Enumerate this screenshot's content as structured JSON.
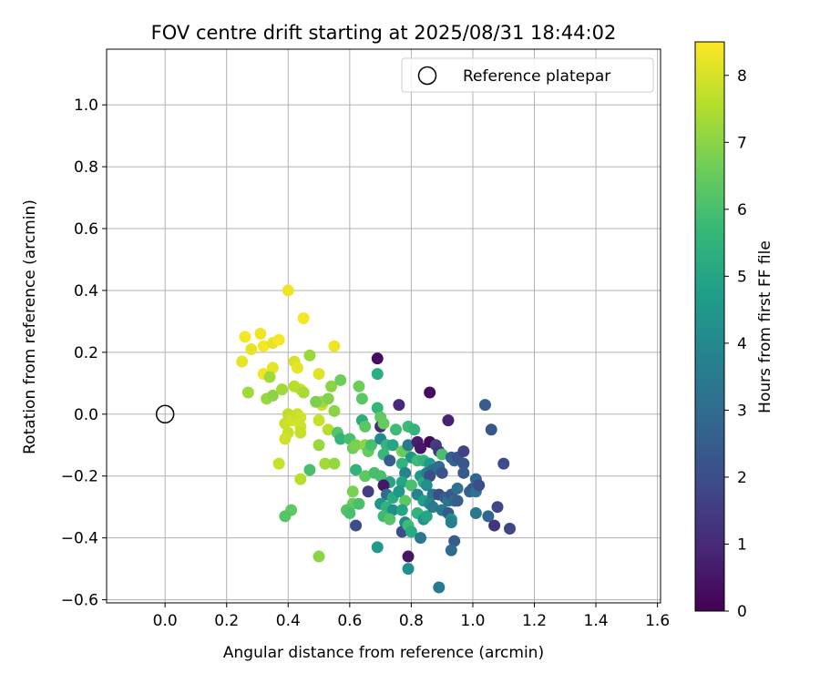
{
  "chart_data": {
    "type": "scatter",
    "title": "FOV centre drift starting at 2025/08/31 18:44:02",
    "xlabel": "Angular distance from reference (arcmin)",
    "ylabel": "Rotation from reference (arcmin)",
    "xlim": [
      -0.19,
      1.61
    ],
    "ylim": [
      -0.61,
      1.18
    ],
    "xticks": [
      0.0,
      0.2,
      0.4,
      0.6,
      0.8,
      1.0,
      1.2,
      1.4,
      1.6
    ],
    "yticks": [
      -0.6,
      -0.4,
      -0.2,
      0.0,
      0.2,
      0.4,
      0.6,
      0.8,
      1.0
    ],
    "xtick_labels": [
      "0.0",
      "0.2",
      "0.4",
      "0.6",
      "0.8",
      "1.0",
      "1.2",
      "1.4",
      "1.6"
    ],
    "ytick_labels": [
      "−0.6",
      "−0.4",
      "−0.2",
      "0.0",
      "0.2",
      "0.4",
      "0.6",
      "0.8",
      "1.0"
    ],
    "grid": true,
    "legend": {
      "position": "top-right",
      "entries": [
        "Reference platepar"
      ]
    },
    "reference_point": {
      "x": 0.0,
      "y": 0.0
    },
    "colorbar": {
      "label": "Hours from first FF file",
      "colormap": "viridis",
      "range": [
        0,
        8.5
      ],
      "ticks": [
        0,
        1,
        2,
        3,
        4,
        5,
        6,
        7,
        8
      ],
      "tick_labels": [
        "0",
        "1",
        "2",
        "3",
        "4",
        "5",
        "6",
        "7",
        "8"
      ]
    },
    "points": [
      {
        "x": 0.4,
        "y": 0.4,
        "h": 8.3
      },
      {
        "x": 0.45,
        "y": 0.31,
        "h": 8.4
      },
      {
        "x": 0.26,
        "y": 0.25,
        "h": 8.4
      },
      {
        "x": 0.31,
        "y": 0.26,
        "h": 8.3
      },
      {
        "x": 0.28,
        "y": 0.21,
        "h": 8.2
      },
      {
        "x": 0.32,
        "y": 0.22,
        "h": 8.4
      },
      {
        "x": 0.35,
        "y": 0.23,
        "h": 8.2
      },
      {
        "x": 0.37,
        "y": 0.24,
        "h": 8.4
      },
      {
        "x": 0.25,
        "y": 0.17,
        "h": 8.2
      },
      {
        "x": 0.32,
        "y": 0.13,
        "h": 8.3
      },
      {
        "x": 0.35,
        "y": 0.15,
        "h": 8.2
      },
      {
        "x": 0.42,
        "y": 0.17,
        "h": 8.0
      },
      {
        "x": 0.43,
        "y": 0.15,
        "h": 8.2
      },
      {
        "x": 0.5,
        "y": 0.13,
        "h": 8.1
      },
      {
        "x": 0.55,
        "y": 0.22,
        "h": 8.3
      },
      {
        "x": 0.44,
        "y": 0.08,
        "h": 7.9
      },
      {
        "x": 0.47,
        "y": 0.19,
        "h": 7.2
      },
      {
        "x": 0.34,
        "y": 0.12,
        "h": 7.3
      },
      {
        "x": 0.27,
        "y": 0.07,
        "h": 7.3
      },
      {
        "x": 0.33,
        "y": 0.05,
        "h": 7.2
      },
      {
        "x": 0.35,
        "y": 0.06,
        "h": 7.0
      },
      {
        "x": 0.38,
        "y": 0.08,
        "h": 7.3
      },
      {
        "x": 0.42,
        "y": 0.09,
        "h": 7.6
      },
      {
        "x": 0.45,
        "y": 0.07,
        "h": 7.4
      },
      {
        "x": 0.39,
        "y": -0.03,
        "h": 7.8
      },
      {
        "x": 0.4,
        "y": 0.0,
        "h": 7.7
      },
      {
        "x": 0.41,
        "y": -0.02,
        "h": 7.9
      },
      {
        "x": 0.43,
        "y": 0.0,
        "h": 7.8
      },
      {
        "x": 0.44,
        "y": -0.01,
        "h": 7.9
      },
      {
        "x": 0.44,
        "y": -0.04,
        "h": 7.9
      },
      {
        "x": 0.44,
        "y": -0.06,
        "h": 7.8
      },
      {
        "x": 0.4,
        "y": -0.06,
        "h": 7.8
      },
      {
        "x": 0.39,
        "y": -0.08,
        "h": 7.9
      },
      {
        "x": 0.37,
        "y": -0.16,
        "h": 7.8
      },
      {
        "x": 0.44,
        "y": -0.21,
        "h": 7.6
      },
      {
        "x": 0.5,
        "y": -0.02,
        "h": 7.8
      },
      {
        "x": 0.51,
        "y": 0.03,
        "h": 7.9
      },
      {
        "x": 0.53,
        "y": -0.05,
        "h": 7.6
      },
      {
        "x": 0.51,
        "y": 0.04,
        "h": 7.3
      },
      {
        "x": 0.49,
        "y": 0.04,
        "h": 6.8
      },
      {
        "x": 0.55,
        "y": 0.01,
        "h": 7.0
      },
      {
        "x": 0.53,
        "y": 0.05,
        "h": 6.9
      },
      {
        "x": 0.54,
        "y": 0.09,
        "h": 7.0
      },
      {
        "x": 0.57,
        "y": 0.11,
        "h": 6.6
      },
      {
        "x": 0.63,
        "y": 0.09,
        "h": 6.6
      },
      {
        "x": 0.64,
        "y": 0.05,
        "h": 6.3
      },
      {
        "x": 0.5,
        "y": -0.1,
        "h": 7.2
      },
      {
        "x": 0.52,
        "y": -0.16,
        "h": 7.3
      },
      {
        "x": 0.55,
        "y": -0.16,
        "h": 7.1
      },
      {
        "x": 0.47,
        "y": -0.18,
        "h": 6.0
      },
      {
        "x": 0.41,
        "y": -0.31,
        "h": 6.4
      },
      {
        "x": 0.39,
        "y": -0.33,
        "h": 6.2
      },
      {
        "x": 0.5,
        "y": -0.46,
        "h": 7.0
      },
      {
        "x": 0.56,
        "y": -0.06,
        "h": 6.2
      },
      {
        "x": 0.57,
        "y": -0.08,
        "h": 5.6
      },
      {
        "x": 0.6,
        "y": -0.08,
        "h": 6.0
      },
      {
        "x": 0.61,
        "y": -0.11,
        "h": 6.6
      },
      {
        "x": 0.62,
        "y": -0.1,
        "h": 6.8
      },
      {
        "x": 0.64,
        "y": -0.02,
        "h": 5.3
      },
      {
        "x": 0.65,
        "y": -0.04,
        "h": 6.3
      },
      {
        "x": 0.65,
        "y": -0.1,
        "h": 7.0
      },
      {
        "x": 0.66,
        "y": -0.12,
        "h": 6.5
      },
      {
        "x": 0.67,
        "y": -0.1,
        "h": 6.0
      },
      {
        "x": 0.62,
        "y": -0.18,
        "h": 5.5
      },
      {
        "x": 0.65,
        "y": -0.2,
        "h": 6.4
      },
      {
        "x": 0.61,
        "y": -0.25,
        "h": 6.8
      },
      {
        "x": 0.61,
        "y": -0.29,
        "h": 6.5
      },
      {
        "x": 0.63,
        "y": -0.29,
        "h": 6.0
      },
      {
        "x": 0.59,
        "y": -0.31,
        "h": 6.2
      },
      {
        "x": 0.6,
        "y": -0.32,
        "h": 6.0
      },
      {
        "x": 0.62,
        "y": -0.36,
        "h": 2.0
      },
      {
        "x": 0.66,
        "y": -0.25,
        "h": 1.5
      },
      {
        "x": 0.68,
        "y": -0.19,
        "h": 6.0
      },
      {
        "x": 0.69,
        "y": 0.18,
        "h": 0.3
      },
      {
        "x": 0.69,
        "y": 0.13,
        "h": 5.3
      },
      {
        "x": 0.69,
        "y": 0.02,
        "h": 5.6
      },
      {
        "x": 0.7,
        "y": -0.01,
        "h": 6.4
      },
      {
        "x": 0.7,
        "y": -0.04,
        "h": 1.0
      },
      {
        "x": 0.71,
        "y": -0.03,
        "h": 6.5
      },
      {
        "x": 0.7,
        "y": -0.08,
        "h": 4.0
      },
      {
        "x": 0.72,
        "y": -0.1,
        "h": 5.6
      },
      {
        "x": 0.74,
        "y": -0.1,
        "h": 5.0
      },
      {
        "x": 0.71,
        "y": -0.13,
        "h": 5.7
      },
      {
        "x": 0.73,
        "y": -0.15,
        "h": 2.5
      },
      {
        "x": 0.7,
        "y": -0.2,
        "h": 6.0
      },
      {
        "x": 0.73,
        "y": -0.22,
        "h": 5.0
      },
      {
        "x": 0.71,
        "y": -0.23,
        "h": 0.5
      },
      {
        "x": 0.72,
        "y": -0.26,
        "h": 3.0
      },
      {
        "x": 0.74,
        "y": -0.27,
        "h": 5.2
      },
      {
        "x": 0.7,
        "y": -0.29,
        "h": 4.4
      },
      {
        "x": 0.72,
        "y": -0.3,
        "h": 5.5
      },
      {
        "x": 0.74,
        "y": -0.31,
        "h": 4.2
      },
      {
        "x": 0.71,
        "y": -0.33,
        "h": 5.8
      },
      {
        "x": 0.73,
        "y": -0.34,
        "h": 6.2
      },
      {
        "x": 0.69,
        "y": -0.43,
        "h": 4.6
      },
      {
        "x": 0.75,
        "y": -0.05,
        "h": 5.8
      },
      {
        "x": 0.76,
        "y": 0.03,
        "h": 1.0
      },
      {
        "x": 0.77,
        "y": -0.12,
        "h": 6.8
      },
      {
        "x": 0.78,
        "y": -0.12,
        "h": 6.5
      },
      {
        "x": 0.79,
        "y": -0.04,
        "h": 5.8
      },
      {
        "x": 0.81,
        "y": -0.05,
        "h": 5.6
      },
      {
        "x": 0.79,
        "y": -0.1,
        "h": 3.5
      },
      {
        "x": 0.8,
        "y": -0.14,
        "h": 4.5
      },
      {
        "x": 0.77,
        "y": -0.16,
        "h": 5.5
      },
      {
        "x": 0.78,
        "y": -0.19,
        "h": 3.8
      },
      {
        "x": 0.77,
        "y": -0.22,
        "h": 5.0
      },
      {
        "x": 0.8,
        "y": -0.23,
        "h": 6.0
      },
      {
        "x": 0.76,
        "y": -0.25,
        "h": 4.5
      },
      {
        "x": 0.78,
        "y": -0.28,
        "h": 6.3
      },
      {
        "x": 0.77,
        "y": -0.31,
        "h": 5.0
      },
      {
        "x": 0.78,
        "y": -0.35,
        "h": 4.0
      },
      {
        "x": 0.77,
        "y": -0.38,
        "h": 2.0
      },
      {
        "x": 0.79,
        "y": -0.36,
        "h": 5.8
      },
      {
        "x": 0.8,
        "y": -0.38,
        "h": 5.2
      },
      {
        "x": 0.79,
        "y": -0.46,
        "h": 0.5
      },
      {
        "x": 0.79,
        "y": -0.5,
        "h": 4.2
      },
      {
        "x": 0.82,
        "y": -0.09,
        "h": 0.7
      },
      {
        "x": 0.83,
        "y": -0.11,
        "h": 0.5
      },
      {
        "x": 0.82,
        "y": -0.15,
        "h": 5.8
      },
      {
        "x": 0.84,
        "y": -0.15,
        "h": 5.5
      },
      {
        "x": 0.83,
        "y": -0.2,
        "h": 4.5
      },
      {
        "x": 0.84,
        "y": -0.22,
        "h": 5.2
      },
      {
        "x": 0.82,
        "y": -0.26,
        "h": 3.8
      },
      {
        "x": 0.84,
        "y": -0.28,
        "h": 4.8
      },
      {
        "x": 0.82,
        "y": -0.32,
        "h": 5.5
      },
      {
        "x": 0.84,
        "y": -0.34,
        "h": 4.4
      },
      {
        "x": 0.83,
        "y": -0.4,
        "h": 3.4
      },
      {
        "x": 0.86,
        "y": 0.07,
        "h": 0.3
      },
      {
        "x": 0.86,
        "y": -0.09,
        "h": 0.2
      },
      {
        "x": 0.86,
        "y": -0.16,
        "h": 4.6
      },
      {
        "x": 0.85,
        "y": -0.19,
        "h": 3.6
      },
      {
        "x": 0.87,
        "y": -0.18,
        "h": 3.0
      },
      {
        "x": 0.86,
        "y": -0.2,
        "h": 2.0
      },
      {
        "x": 0.85,
        "y": -0.23,
        "h": 4.2
      },
      {
        "x": 0.87,
        "y": -0.26,
        "h": 3.3
      },
      {
        "x": 0.86,
        "y": -0.29,
        "h": 4.0
      },
      {
        "x": 0.85,
        "y": -0.33,
        "h": 5.0
      },
      {
        "x": 0.87,
        "y": -0.3,
        "h": 3.5
      },
      {
        "x": 0.88,
        "y": -0.1,
        "h": 1.5
      },
      {
        "x": 0.89,
        "y": -0.12,
        "h": 1.3
      },
      {
        "x": 0.9,
        "y": -0.13,
        "h": 6.0
      },
      {
        "x": 0.89,
        "y": -0.17,
        "h": 3.0
      },
      {
        "x": 0.9,
        "y": -0.19,
        "h": 2.2
      },
      {
        "x": 0.89,
        "y": -0.26,
        "h": 2.0
      },
      {
        "x": 0.91,
        "y": -0.27,
        "h": 2.5
      },
      {
        "x": 0.9,
        "y": -0.31,
        "h": 3.4
      },
      {
        "x": 0.92,
        "y": -0.28,
        "h": 3.2
      },
      {
        "x": 0.89,
        "y": -0.56,
        "h": 3.5
      },
      {
        "x": 0.92,
        "y": -0.02,
        "h": 0.8
      },
      {
        "x": 0.93,
        "y": -0.14,
        "h": 2.5
      },
      {
        "x": 0.94,
        "y": -0.15,
        "h": 2.8
      },
      {
        "x": 0.93,
        "y": -0.26,
        "h": 2.4
      },
      {
        "x": 0.94,
        "y": -0.28,
        "h": 3.0
      },
      {
        "x": 0.92,
        "y": -0.32,
        "h": 2.4
      },
      {
        "x": 0.93,
        "y": -0.34,
        "h": 4.3
      },
      {
        "x": 0.93,
        "y": -0.35,
        "h": 3.7
      },
      {
        "x": 0.94,
        "y": -0.41,
        "h": 2.5
      },
      {
        "x": 0.93,
        "y": -0.44,
        "h": 3.0
      },
      {
        "x": 0.95,
        "y": -0.14,
        "h": 2.2
      },
      {
        "x": 0.95,
        "y": -0.24,
        "h": 3.2
      },
      {
        "x": 0.95,
        "y": -0.28,
        "h": 2.5
      },
      {
        "x": 0.97,
        "y": -0.12,
        "h": 1.7
      },
      {
        "x": 0.97,
        "y": -0.16,
        "h": 2.3
      },
      {
        "x": 0.97,
        "y": -0.19,
        "h": 2.4
      },
      {
        "x": 0.99,
        "y": -0.25,
        "h": 2.6
      },
      {
        "x": 1.0,
        "y": -0.24,
        "h": 2.3
      },
      {
        "x": 1.01,
        "y": -0.21,
        "h": 2.8
      },
      {
        "x": 1.01,
        "y": -0.25,
        "h": 3.2
      },
      {
        "x": 1.02,
        "y": -0.23,
        "h": 2.0
      },
      {
        "x": 1.01,
        "y": -0.32,
        "h": 3.4
      },
      {
        "x": 1.04,
        "y": 0.03,
        "h": 2.5
      },
      {
        "x": 1.06,
        "y": -0.05,
        "h": 2.3
      },
      {
        "x": 1.05,
        "y": -0.33,
        "h": 2.8
      },
      {
        "x": 1.07,
        "y": -0.36,
        "h": 1.3
      },
      {
        "x": 1.08,
        "y": -0.3,
        "h": 1.8
      },
      {
        "x": 1.1,
        "y": -0.16,
        "h": 2.0
      },
      {
        "x": 1.12,
        "y": -0.37,
        "h": 1.8
      }
    ]
  }
}
